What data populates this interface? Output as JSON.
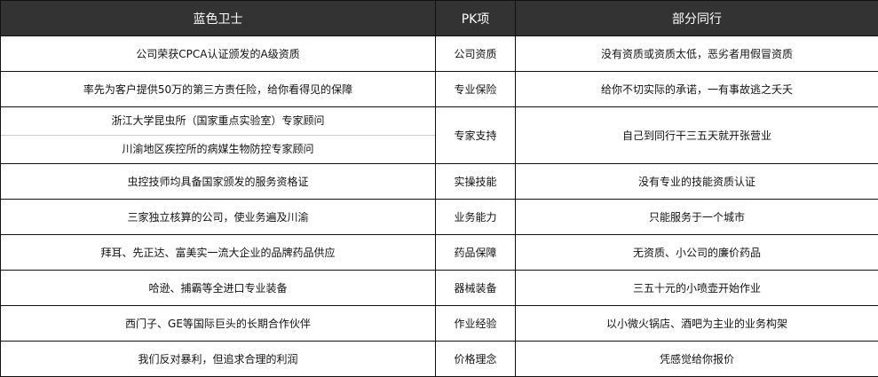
{
  "header": {
    "col1": "蓝色卫士",
    "col2": "PK项",
    "col3": "部分同行"
  },
  "rows": [
    {
      "ours": [
        "公司荣获CPCA认证颁发的A级资质"
      ],
      "item": "公司资质",
      "others": "没有资质或资质太低，恶劣者用假冒资质"
    },
    {
      "ours": [
        "率先为客户提供50万的第三方责任险，给你看得见的保障"
      ],
      "item": "专业保险",
      "others": "给你不切实际的承诺，一有事故逃之夭夭"
    },
    {
      "ours": [
        "浙江大学昆虫所（国家重点实验室）专家顾问",
        "川渝地区疾控所的病媒生物防控专家顾问"
      ],
      "item": "专家支持",
      "others": "自己到同行干三五天就开张营业"
    },
    {
      "ours": [
        "虫控技师均具备国家颁发的服务资格证"
      ],
      "item": "实操技能",
      "others": "没有专业的技能资质认证"
    },
    {
      "ours": [
        "三家独立核算的公司，使业务遍及川渝"
      ],
      "item": "业务能力",
      "others": "只能服务于一个城市"
    },
    {
      "ours": [
        "拜耳、先正达、富美实一流大企业的品牌药品供应"
      ],
      "item": "药品保障",
      "others": "无资质、小公司的廉价药品"
    },
    {
      "ours": [
        "哈逊、捕霸等全进口专业装备"
      ],
      "item": "器械装备",
      "others": "三五十元的小喷壶开始作业"
    },
    {
      "ours": [
        "西门子、GE等国际巨头的长期合作伙伴"
      ],
      "item": "作业经验",
      "others": "以小微火锅店、酒吧为主业的业务构架"
    },
    {
      "ours": [
        "我们反对暴利，但追求合理的利润"
      ],
      "item": "价格理念",
      "others": "凭感觉给你报价"
    }
  ]
}
